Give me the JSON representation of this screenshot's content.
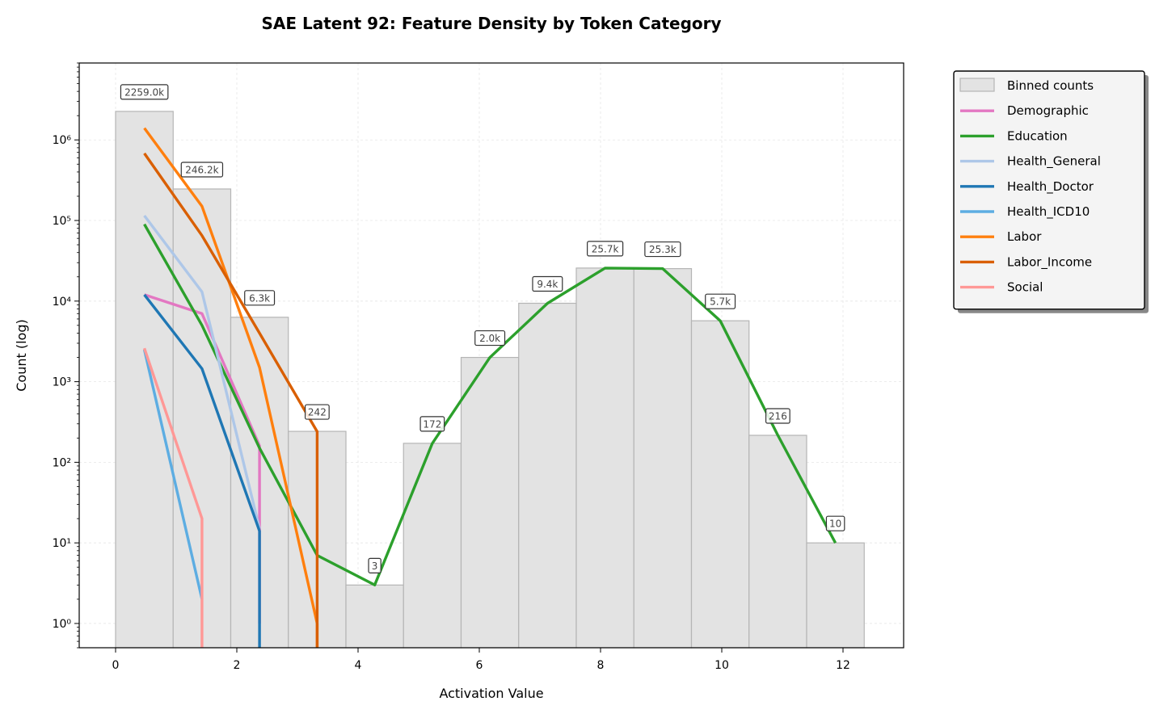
{
  "colors": {
    "bar_fill": "#e3e3e3",
    "bar_stroke": "#b5b5b5",
    "grid": "#e6e6e6",
    "label_text": "#444444",
    "label_border": "#333333"
  },
  "chart_data": {
    "type": "bar",
    "title": "SAE Latent 92: Feature Density by Token Category",
    "xlabel": "Activation Value",
    "ylabel": "Count (log)",
    "yscale": "log",
    "xlim": [
      -0.6,
      13.0
    ],
    "ylim": [
      0.5,
      9000000
    ],
    "grid": true,
    "legend_position": "outside-upper-right",
    "x_ticks": [
      0,
      2,
      4,
      6,
      8,
      10,
      12
    ],
    "y_ticks": [
      {
        "value": 1,
        "label": "10⁰"
      },
      {
        "value": 10,
        "label": "10¹"
      },
      {
        "value": 100,
        "label": "10²"
      },
      {
        "value": 1000,
        "label": "10³"
      },
      {
        "value": 10000,
        "label": "10⁴"
      },
      {
        "value": 100000,
        "label": "10⁵"
      },
      {
        "value": 1000000,
        "label": "10⁶"
      }
    ],
    "bin_edges": [
      0.0,
      0.95,
      1.9,
      2.85,
      3.8,
      4.75,
      5.7,
      6.65,
      7.6,
      8.55,
      9.5,
      10.45,
      11.4,
      12.35
    ],
    "bins": {
      "name": "Binned counts",
      "values": [
        2259000,
        246200,
        6300,
        242,
        3,
        172,
        2000,
        9400,
        25700,
        25300,
        5700,
        216,
        10
      ],
      "labels": [
        "2259.0k",
        "246.2k",
        "6.3k",
        "242",
        "3",
        "172",
        "2.0k",
        "9.4k",
        "25.7k",
        "25.3k",
        "5.7k",
        "216",
        "10"
      ]
    },
    "series": [
      {
        "name": "Demographic",
        "color": "#e377c2",
        "x": [
          0.475,
          1.425,
          2.375,
          2.375
        ],
        "y": [
          12000,
          7000,
          160,
          1
        ]
      },
      {
        "name": "Education",
        "color": "#2ca02c",
        "x": [
          0.475,
          1.425,
          2.375,
          3.325,
          4.275,
          5.225,
          6.175,
          7.125,
          8.075,
          9.025,
          9.975,
          10.925,
          11.875
        ],
        "y": [
          90000,
          5000,
          150,
          7,
          3,
          172,
          2000,
          9400,
          25700,
          25300,
          5700,
          216,
          10
        ]
      },
      {
        "name": "Health_General",
        "color": "#aec7e8",
        "x": [
          0.475,
          1.425,
          2.375
        ],
        "y": [
          115000,
          13000,
          15
        ]
      },
      {
        "name": "Health_Doctor",
        "color": "#1f77b4",
        "x": [
          0.475,
          1.425,
          2.375,
          2.375
        ],
        "y": [
          12000,
          1450,
          14,
          0.5
        ]
      },
      {
        "name": "Health_ICD10",
        "color": "#5dade2",
        "x": [
          0.475,
          1.425
        ],
        "y": [
          2500,
          2
        ]
      },
      {
        "name": "Labor",
        "color": "#ff7f0e",
        "x": [
          0.475,
          1.425,
          2.375,
          3.325,
          3.325
        ],
        "y": [
          1400000,
          150000,
          1500,
          1,
          0.5
        ]
      },
      {
        "name": "Labor_Income",
        "color": "#d95f02",
        "x": [
          0.475,
          1.425,
          2.375,
          3.325,
          3.325
        ],
        "y": [
          680000,
          65000,
          4000,
          240,
          0.5
        ]
      },
      {
        "name": "Social",
        "color": "#ff9896",
        "x": [
          0.475,
          1.425,
          1.425
        ],
        "y": [
          2600,
          20,
          0.5
        ]
      }
    ]
  }
}
